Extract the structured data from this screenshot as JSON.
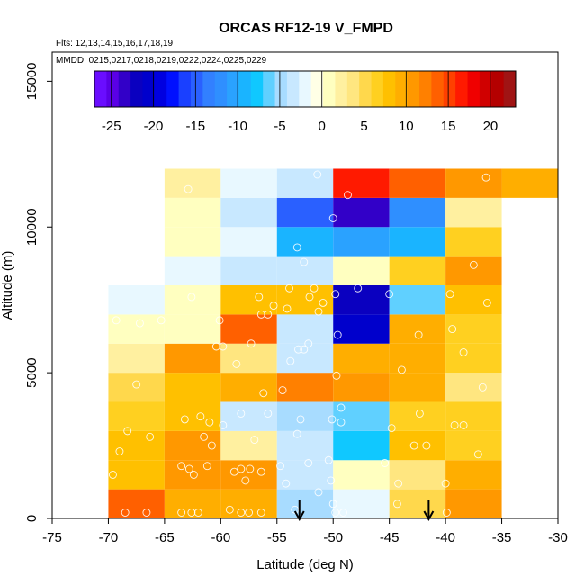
{
  "chart_data": {
    "type": "heatmap",
    "title": "ORCAS RF12-19 V_FMPD",
    "annotations": {
      "flights": "Flts: 12,13,14,15,16,17,18,19",
      "dates": "MMDD: 0215,0217,0218,0219,0222,0224,0225,0229"
    },
    "xlabel": "Latitude (deg N)",
    "ylabel": "Altitude (m)",
    "xlim": [
      -75,
      -30
    ],
    "ylim": [
      0,
      16000
    ],
    "xticks": [
      -75,
      -70,
      -65,
      -60,
      -55,
      -50,
      -45,
      -40,
      -35,
      -30
    ],
    "yticks": [
      0,
      5000,
      10000,
      15000
    ],
    "cell_width_deg": 5,
    "cell_height_m": 1000,
    "colorbar": {
      "range": [
        -27,
        23
      ],
      "ticks": [
        -25,
        -20,
        -15,
        -10,
        -5,
        0,
        5,
        10,
        15,
        20
      ],
      "colors": [
        "#6a0dff",
        "#5a00e6",
        "#3200c8",
        "#0a00c0",
        "#0000cc",
        "#0000e0",
        "#0010ff",
        "#1a40ff",
        "#2a60ff",
        "#3280ff",
        "#2f8fff",
        "#2aa2ff",
        "#1ab4ff",
        "#10c8ff",
        "#60d0ff",
        "#a8dcff",
        "#c8e8ff",
        "#e8f8ff",
        "#ffffe6",
        "#ffffc0",
        "#fff0a0",
        "#ffe680",
        "#ffd84c",
        "#ffd020",
        "#ffc000",
        "#ffae00",
        "#ff9800",
        "#ff8000",
        "#ff6000",
        "#ff4000",
        "#ff1a00",
        "#f00000",
        "#d00000",
        "#b40000",
        "#a01414"
      ]
    },
    "cells": [
      {
        "lat": -70,
        "alt": 0,
        "value": 14
      },
      {
        "lat": -70,
        "alt": 1000,
        "value": 8
      },
      {
        "lat": -70,
        "alt": 2000,
        "value": 8
      },
      {
        "lat": -70,
        "alt": 3000,
        "value": 6
      },
      {
        "lat": -70,
        "alt": 4000,
        "value": 5
      },
      {
        "lat": -70,
        "alt": 5000,
        "value": 2
      },
      {
        "lat": -70,
        "alt": 6000,
        "value": 1
      },
      {
        "lat": -70,
        "alt": 7000,
        "value": -2
      },
      {
        "lat": -65,
        "alt": 0,
        "value": 9
      },
      {
        "lat": -65,
        "alt": 1000,
        "value": 11
      },
      {
        "lat": -65,
        "alt": 2000,
        "value": 11
      },
      {
        "lat": -65,
        "alt": 3000,
        "value": 8
      },
      {
        "lat": -65,
        "alt": 4000,
        "value": 8
      },
      {
        "lat": -65,
        "alt": 5000,
        "value": 11
      },
      {
        "lat": -65,
        "alt": 6000,
        "value": 1
      },
      {
        "lat": -65,
        "alt": 7000,
        "value": 1
      },
      {
        "lat": -65,
        "alt": 8000,
        "value": -2
      },
      {
        "lat": -65,
        "alt": 9000,
        "value": 0.5
      },
      {
        "lat": -65,
        "alt": 10000,
        "value": 1.5
      },
      {
        "lat": -65,
        "alt": 11000,
        "value": 2
      },
      {
        "lat": -60,
        "alt": 0,
        "value": 9
      },
      {
        "lat": -60,
        "alt": 1000,
        "value": 11
      },
      {
        "lat": -60,
        "alt": 2000,
        "value": 2
      },
      {
        "lat": -60,
        "alt": 3000,
        "value": -4
      },
      {
        "lat": -60,
        "alt": 4000,
        "value": 10
      },
      {
        "lat": -60,
        "alt": 5000,
        "value": 3
      },
      {
        "lat": -60,
        "alt": 6000,
        "value": 13
      },
      {
        "lat": -60,
        "alt": 7000,
        "value": 8
      },
      {
        "lat": -60,
        "alt": 8000,
        "value": -3
      },
      {
        "lat": -60,
        "alt": 9000,
        "value": -2
      },
      {
        "lat": -60,
        "alt": 10000,
        "value": -4
      },
      {
        "lat": -60,
        "alt": 11000,
        "value": -2
      },
      {
        "lat": -55,
        "alt": 0,
        "value": -5
      },
      {
        "lat": -55,
        "alt": 1000,
        "value": -3
      },
      {
        "lat": -55,
        "alt": 2000,
        "value": -4
      },
      {
        "lat": -55,
        "alt": 3000,
        "value": -5
      },
      {
        "lat": -55,
        "alt": 4000,
        "value": 12
      },
      {
        "lat": -55,
        "alt": 5000,
        "value": -3
      },
      {
        "lat": -55,
        "alt": 6000,
        "value": -4
      },
      {
        "lat": -55,
        "alt": 7000,
        "value": 8
      },
      {
        "lat": -55,
        "alt": 8000,
        "value": -4
      },
      {
        "lat": -55,
        "alt": 9000,
        "value": -9
      },
      {
        "lat": -55,
        "alt": 10000,
        "value": -15
      },
      {
        "lat": -55,
        "alt": 11000,
        "value": -4
      },
      {
        "lat": -50,
        "alt": 0,
        "value": -2
      },
      {
        "lat": -50,
        "alt": 1000,
        "value": 1
      },
      {
        "lat": -50,
        "alt": 2000,
        "value": -8
      },
      {
        "lat": -50,
        "alt": 3000,
        "value": -6
      },
      {
        "lat": -50,
        "alt": 4000,
        "value": 11
      },
      {
        "lat": -50,
        "alt": 5000,
        "value": 9
      },
      {
        "lat": -50,
        "alt": 6000,
        "value": -21
      },
      {
        "lat": -50,
        "alt": 7000,
        "value": -22
      },
      {
        "lat": -50,
        "alt": 8000,
        "value": 1
      },
      {
        "lat": -50,
        "alt": 9000,
        "value": -11
      },
      {
        "lat": -50,
        "alt": 10000,
        "value": -24
      },
      {
        "lat": -50,
        "alt": 11000,
        "value": 16
      },
      {
        "lat": -45,
        "alt": 0,
        "value": 5
      },
      {
        "lat": -45,
        "alt": 1000,
        "value": 3
      },
      {
        "lat": -45,
        "alt": 2000,
        "value": 8
      },
      {
        "lat": -45,
        "alt": 3000,
        "value": 7
      },
      {
        "lat": -45,
        "alt": 4000,
        "value": 10
      },
      {
        "lat": -45,
        "alt": 5000,
        "value": 9
      },
      {
        "lat": -45,
        "alt": 6000,
        "value": 9
      },
      {
        "lat": -45,
        "alt": 7000,
        "value": -7
      },
      {
        "lat": -45,
        "alt": 8000,
        "value": 7
      },
      {
        "lat": -45,
        "alt": 9000,
        "value": -9
      },
      {
        "lat": -45,
        "alt": 10000,
        "value": -12
      },
      {
        "lat": -45,
        "alt": 11000,
        "value": 13
      },
      {
        "lat": -40,
        "alt": 0,
        "value": 11
      },
      {
        "lat": -40,
        "alt": 1000,
        "value": 9
      },
      {
        "lat": -40,
        "alt": 2000,
        "value": 6
      },
      {
        "lat": -40,
        "alt": 3000,
        "value": 6
      },
      {
        "lat": -40,
        "alt": 4000,
        "value": 3
      },
      {
        "lat": -40,
        "alt": 5000,
        "value": 7
      },
      {
        "lat": -40,
        "alt": 6000,
        "value": 7
      },
      {
        "lat": -40,
        "alt": 7000,
        "value": 8
      },
      {
        "lat": -40,
        "alt": 8000,
        "value": 11
      },
      {
        "lat": -40,
        "alt": 9000,
        "value": 7
      },
      {
        "lat": -40,
        "alt": 10000,
        "value": 2
      },
      {
        "lat": -40,
        "alt": 11000,
        "value": 11
      },
      {
        "lat": -35,
        "alt": 11000,
        "value": 10
      }
    ],
    "arrows_at_latitude": [
      -53,
      -41.5
    ],
    "flight_points": [
      [
        -68.5,
        200
      ],
      [
        -66.6,
        200
      ],
      [
        -69.6,
        1500
      ],
      [
        -69.0,
        2300
      ],
      [
        -66.3,
        2800
      ],
      [
        -68.3,
        3000
      ],
      [
        -67.5,
        4600
      ],
      [
        -67.2,
        6700
      ],
      [
        -65.3,
        6800
      ],
      [
        -69.3,
        6800
      ],
      [
        -63.5,
        200
      ],
      [
        -62.6,
        200
      ],
      [
        -62.0,
        200
      ],
      [
        -62.8,
        1700
      ],
      [
        -63.5,
        1800
      ],
      [
        -61.2,
        1800
      ],
      [
        -62.4,
        1500
      ],
      [
        -60.8,
        2500
      ],
      [
        -63.2,
        3400
      ],
      [
        -61.8,
        3500
      ],
      [
        -61.0,
        3300
      ],
      [
        -59.8,
        3200
      ],
      [
        -61.5,
        2800
      ],
      [
        -62.6,
        7600
      ],
      [
        -60.1,
        6800
      ],
      [
        -62.9,
        11300
      ],
      [
        -58.2,
        200
      ],
      [
        -57.5,
        200
      ],
      [
        -56.4,
        200
      ],
      [
        -59.2,
        300
      ],
      [
        -57.8,
        1300
      ],
      [
        -58.8,
        1600
      ],
      [
        -58.2,
        1700
      ],
      [
        -57.4,
        1700
      ],
      [
        -56.4,
        1600
      ],
      [
        -54.7,
        1800
      ],
      [
        -57.0,
        2700
      ],
      [
        -55.8,
        3600
      ],
      [
        -58.2,
        3600
      ],
      [
        -56.2,
        4300
      ],
      [
        -58.6,
        5300
      ],
      [
        -60.4,
        5900
      ],
      [
        -59.8,
        5900
      ],
      [
        -57.3,
        6000
      ],
      [
        -55.8,
        7000
      ],
      [
        -56.4,
        7000
      ],
      [
        -55.3,
        7300
      ],
      [
        -56.6,
        7600
      ],
      [
        -53.4,
        300
      ],
      [
        -54.2,
        1200
      ],
      [
        -51.3,
        900
      ],
      [
        -50.2,
        1300
      ],
      [
        -53.8,
        5400
      ],
      [
        -53.1,
        5800
      ],
      [
        -52.6,
        5800
      ],
      [
        -52.2,
        6000
      ],
      [
        -51.3,
        7100
      ],
      [
        -50.9,
        7400
      ],
      [
        -52.1,
        7600
      ],
      [
        -51.7,
        7900
      ],
      [
        -54.5,
        4400
      ],
      [
        -52.9,
        3400
      ],
      [
        -53.2,
        2900
      ],
      [
        -52.2,
        1900
      ],
      [
        -51.4,
        11800
      ],
      [
        -50.0,
        10300
      ],
      [
        -53.2,
        9300
      ],
      [
        -52.6,
        8800
      ],
      [
        -54.1,
        7200
      ],
      [
        -53.9,
        7900
      ],
      [
        -49.8,
        200
      ],
      [
        -50.0,
        500
      ],
      [
        -49.1,
        200
      ],
      [
        -49.3,
        3300
      ],
      [
        -50.1,
        3400
      ],
      [
        -50.4,
        2000
      ],
      [
        -49.7,
        4900
      ],
      [
        -49.3,
        3800
      ],
      [
        -49.8,
        7700
      ],
      [
        -49.6,
        6300
      ],
      [
        -48.7,
        11100
      ],
      [
        -47.8,
        7900
      ],
      [
        -45.4,
        1900
      ],
      [
        -44.3,
        500
      ],
      [
        -44.2,
        1200
      ],
      [
        -44.8,
        3100
      ],
      [
        -42.8,
        2500
      ],
      [
        -42.3,
        3600
      ],
      [
        -43.9,
        5100
      ],
      [
        -42.4,
        6300
      ],
      [
        -45.0,
        7700
      ],
      [
        -39.9,
        200
      ],
      [
        -40.0,
        1200
      ],
      [
        -41.7,
        2500
      ],
      [
        -39.2,
        3200
      ],
      [
        -38.4,
        3200
      ],
      [
        -38.4,
        5700
      ],
      [
        -39.4,
        6500
      ],
      [
        -37.1,
        2200
      ],
      [
        -36.7,
        4500
      ],
      [
        -36.3,
        7400
      ],
      [
        -37.5,
        8700
      ],
      [
        -39.6,
        7700
      ],
      [
        -36.4,
        11700
      ]
    ]
  }
}
